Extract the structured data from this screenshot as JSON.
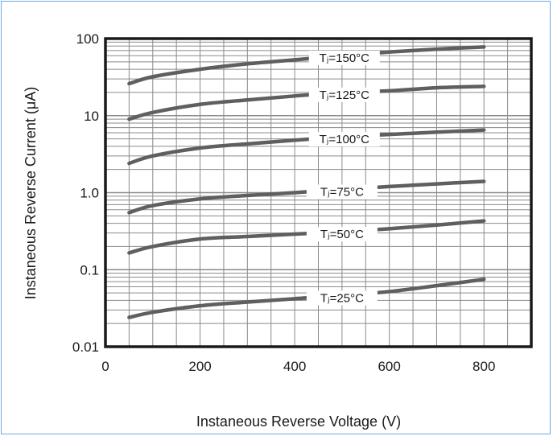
{
  "colors": {
    "frame": "#6fa8dc",
    "curve": "#5f5f5f",
    "grid": "#8a8a8a",
    "axis": "#1a1a1a"
  },
  "chart_data": {
    "type": "line",
    "xlabel": "Instaneous Reverse Voltage (V)",
    "ylabel": "Instaneous Reverse Current (μA)",
    "xlim": [
      0,
      900
    ],
    "ylim": [
      0.01,
      100
    ],
    "yscale": "log",
    "grid": true,
    "x_ticks": [
      0,
      200,
      400,
      600,
      800
    ],
    "x_tick_labels": [
      "0",
      "200",
      "400",
      "600",
      "800"
    ],
    "y_ticks": [
      0.01,
      0.1,
      1,
      10,
      100
    ],
    "y_tick_labels": [
      "0.01",
      "0.1",
      "1.0",
      "10",
      "100"
    ],
    "series": [
      {
        "name": "TJ=150°C",
        "label": "Tⱼ=150°C",
        "label_x": 505,
        "x": [
          50,
          100,
          200,
          300,
          400,
          500,
          600,
          700,
          800
        ],
        "values": [
          26,
          32,
          40,
          47,
          53,
          60,
          67,
          73,
          78
        ]
      },
      {
        "name": "TJ=125°C",
        "label": "Tⱼ=125°C",
        "label_x": 505,
        "x": [
          50,
          100,
          200,
          300,
          400,
          500,
          600,
          700,
          800
        ],
        "values": [
          9,
          11,
          14,
          16,
          18,
          20,
          21,
          23,
          24
        ]
      },
      {
        "name": "TJ=100°C",
        "label": "Tⱼ=100°C",
        "label_x": 505,
        "x": [
          50,
          100,
          200,
          300,
          400,
          500,
          600,
          700,
          800
        ],
        "values": [
          2.4,
          3.0,
          3.8,
          4.3,
          4.8,
          5.3,
          5.7,
          6.1,
          6.5
        ]
      },
      {
        "name": "TJ=75°C",
        "label": "Tⱼ=75°C",
        "label_x": 500,
        "x": [
          50,
          100,
          200,
          300,
          400,
          500,
          600,
          700,
          800
        ],
        "values": [
          0.55,
          0.68,
          0.83,
          0.92,
          1.0,
          1.1,
          1.2,
          1.3,
          1.4
        ]
      },
      {
        "name": "TJ=50°C",
        "label": "Tⱼ=50°C",
        "label_x": 500,
        "x": [
          50,
          100,
          200,
          300,
          400,
          500,
          600,
          700,
          800
        ],
        "values": [
          0.165,
          0.2,
          0.25,
          0.27,
          0.29,
          0.31,
          0.34,
          0.38,
          0.43
        ]
      },
      {
        "name": "TJ=25°C",
        "label": "Tⱼ=25°C",
        "label_x": 500,
        "x": [
          50,
          100,
          200,
          300,
          400,
          500,
          600,
          700,
          800
        ],
        "values": [
          0.024,
          0.028,
          0.034,
          0.038,
          0.042,
          0.046,
          0.052,
          0.062,
          0.075
        ]
      }
    ]
  }
}
